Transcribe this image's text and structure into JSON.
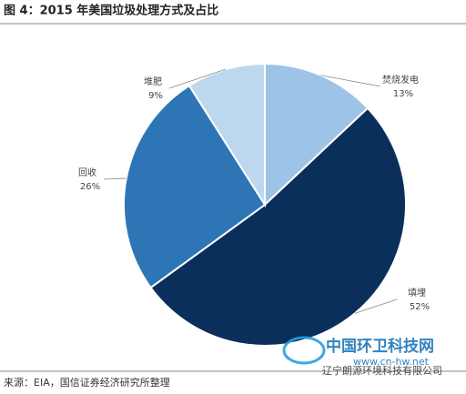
{
  "chart_data": {
    "type": "pie",
    "title": "图 4：2015 年美国垃圾处理方式及占比",
    "categories": [
      "焚烧发电",
      "填埋",
      "回收",
      "堆肥"
    ],
    "values": [
      13,
      52,
      26,
      9
    ],
    "value_labels": [
      "13%",
      "52%",
      "26%",
      "9%"
    ],
    "colors": [
      "#9dc3e6",
      "#0b2f5b",
      "#2e75b6",
      "#bdd7ee"
    ],
    "source": "来源：EIA，国信证券经济研究所整理"
  },
  "watermark": {
    "site": "中国环卫科技网",
    "url": "www.cn-hw.net",
    "company": "辽宁朗源环境科技有限公司"
  }
}
